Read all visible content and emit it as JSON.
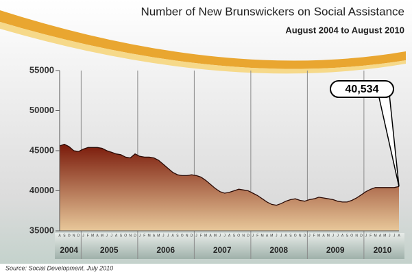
{
  "chart_data": {
    "type": "area",
    "title": "Number of New Brunswickers on Social Assistance",
    "subtitle": "August 2004 to August 2010",
    "source": "Source: Social Development, July 2010",
    "categories": [
      "A",
      "S",
      "O",
      "N",
      "D",
      "J",
      "F",
      "M",
      "A",
      "M",
      "J",
      "J",
      "A",
      "S",
      "O",
      "N",
      "D",
      "J",
      "F",
      "M",
      "A",
      "M",
      "J",
      "J",
      "A",
      "S",
      "O",
      "N",
      "D",
      "J",
      "F",
      "M",
      "A",
      "M",
      "J",
      "J",
      "A",
      "S",
      "O",
      "N",
      "D",
      "J",
      "F",
      "M",
      "A",
      "M",
      "J",
      "J",
      "A",
      "S",
      "O",
      "N",
      "D",
      "J",
      "F",
      "M",
      "A",
      "M",
      "J",
      "J",
      "A",
      "S",
      "O",
      "N",
      "D",
      "J",
      "F",
      "M",
      "A",
      "M",
      "J",
      "J",
      "A"
    ],
    "years": [
      "2004",
      "2005",
      "2006",
      "2007",
      "2008",
      "2009",
      "2010"
    ],
    "values": [
      45600,
      45800,
      45500,
      45000,
      44900,
      45200,
      45400,
      45400,
      45400,
      45300,
      45000,
      44800,
      44600,
      44500,
      44200,
      44100,
      44600,
      44300,
      44200,
      44200,
      44100,
      43800,
      43300,
      42800,
      42300,
      42000,
      41900,
      41900,
      42000,
      41900,
      41700,
      41300,
      40800,
      40300,
      39900,
      39700,
      39800,
      40000,
      40200,
      40100,
      40000,
      39700,
      39400,
      39000,
      38600,
      38300,
      38200,
      38400,
      38700,
      38900,
      39000,
      38800,
      38700,
      38900,
      39000,
      39200,
      39100,
      39000,
      38900,
      38700,
      38600,
      38600,
      38800,
      39100,
      39500,
      39900,
      40200,
      40400,
      40400,
      40400,
      40400,
      40400,
      40534
    ],
    "value_labels": [
      null,
      null,
      null,
      null,
      null,
      null,
      null,
      null,
      null,
      null,
      null,
      null,
      null,
      null,
      null,
      null,
      null,
      null,
      null,
      null,
      null,
      null,
      null,
      null,
      null,
      null,
      null,
      null,
      null,
      null,
      null,
      null,
      null,
      null,
      null,
      null,
      null,
      null,
      null,
      null,
      null,
      null,
      null,
      null,
      null,
      null,
      null,
      null,
      null,
      null,
      null,
      null,
      null,
      null,
      null,
      null,
      null,
      null,
      null,
      null,
      null,
      null,
      null,
      null,
      null,
      null,
      null,
      null,
      null,
      null,
      null,
      null,
      "40,534"
    ],
    "ylim": [
      35000,
      55000
    ],
    "yticks": [
      35000,
      40000,
      45000,
      50000,
      55000
    ],
    "color_top": "#7a1a0a",
    "color_bottom": "#e8c89a"
  }
}
